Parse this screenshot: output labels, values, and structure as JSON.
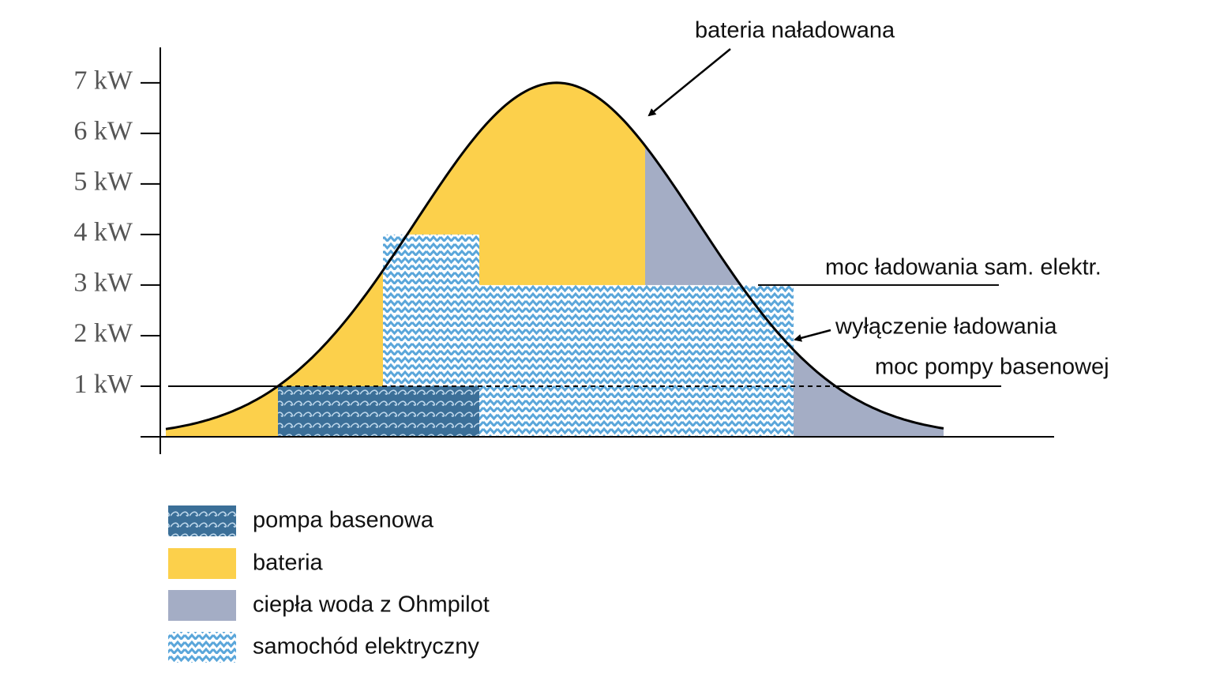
{
  "chart_data": {
    "type": "energy-profile",
    "peak": 7,
    "ylim": [
      0,
      7.7
    ],
    "yticks": [
      {
        "value": 1,
        "label": "1 kW"
      },
      {
        "value": 2,
        "label": "2 kW"
      },
      {
        "value": 3,
        "label": "3 kW"
      },
      {
        "value": 4,
        "label": "4 kW"
      },
      {
        "value": 5,
        "label": "5 kW"
      },
      {
        "value": 6,
        "label": "6 kW"
      },
      {
        "value": 7,
        "label": "7 kW"
      }
    ],
    "series": [
      {
        "name": "pompa basenowa",
        "color": "#3b6f98",
        "values": [
          1
        ]
      },
      {
        "name": "bateria",
        "color": "#fcd04b"
      },
      {
        "name": "ciepła woda z Ohmpilot",
        "color": "#a4adc5"
      },
      {
        "name": "samochód elektryczny",
        "color": "#5aa6da",
        "values": [
          3
        ]
      }
    ],
    "annotations": [
      "bateria naładowana",
      "moc ładowania sam. elektr.",
      "wyłączenie ładowania",
      "moc pompy basenowej"
    ]
  }
}
